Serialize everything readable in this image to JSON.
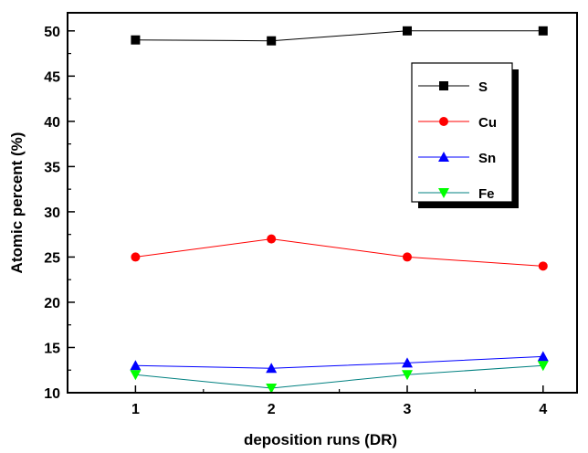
{
  "chart_data": {
    "type": "line",
    "title": "",
    "xlabel": "deposition runs (DR)",
    "ylabel": "Atomic percent (%)",
    "x": [
      1,
      2,
      3,
      4
    ],
    "xticks": [
      "1",
      "2",
      "3",
      "4"
    ],
    "xlim": [
      0.5,
      4.25
    ],
    "ylim": [
      10,
      52
    ],
    "yticks": [
      "10",
      "15",
      "20",
      "25",
      "30",
      "35",
      "40",
      "45",
      "50"
    ],
    "grid": false,
    "legend_position": "top-right",
    "series": [
      {
        "name": "S",
        "marker": "square",
        "color": "#000000",
        "line_color": "#000000",
        "values": [
          49,
          48.9,
          50,
          50
        ]
      },
      {
        "name": "Cu",
        "marker": "circle",
        "color": "#ff0000",
        "line_color": "#ff0000",
        "values": [
          25,
          27,
          25,
          24
        ]
      },
      {
        "name": "Sn",
        "marker": "triangle-up",
        "color": "#0000ff",
        "line_color": "#0000ff",
        "values": [
          13,
          12.7,
          13.3,
          14
        ]
      },
      {
        "name": "Fe",
        "marker": "triangle-down",
        "color": "#00ff00",
        "line_color": "#008080",
        "values": [
          12,
          10.5,
          12,
          13
        ]
      }
    ]
  }
}
